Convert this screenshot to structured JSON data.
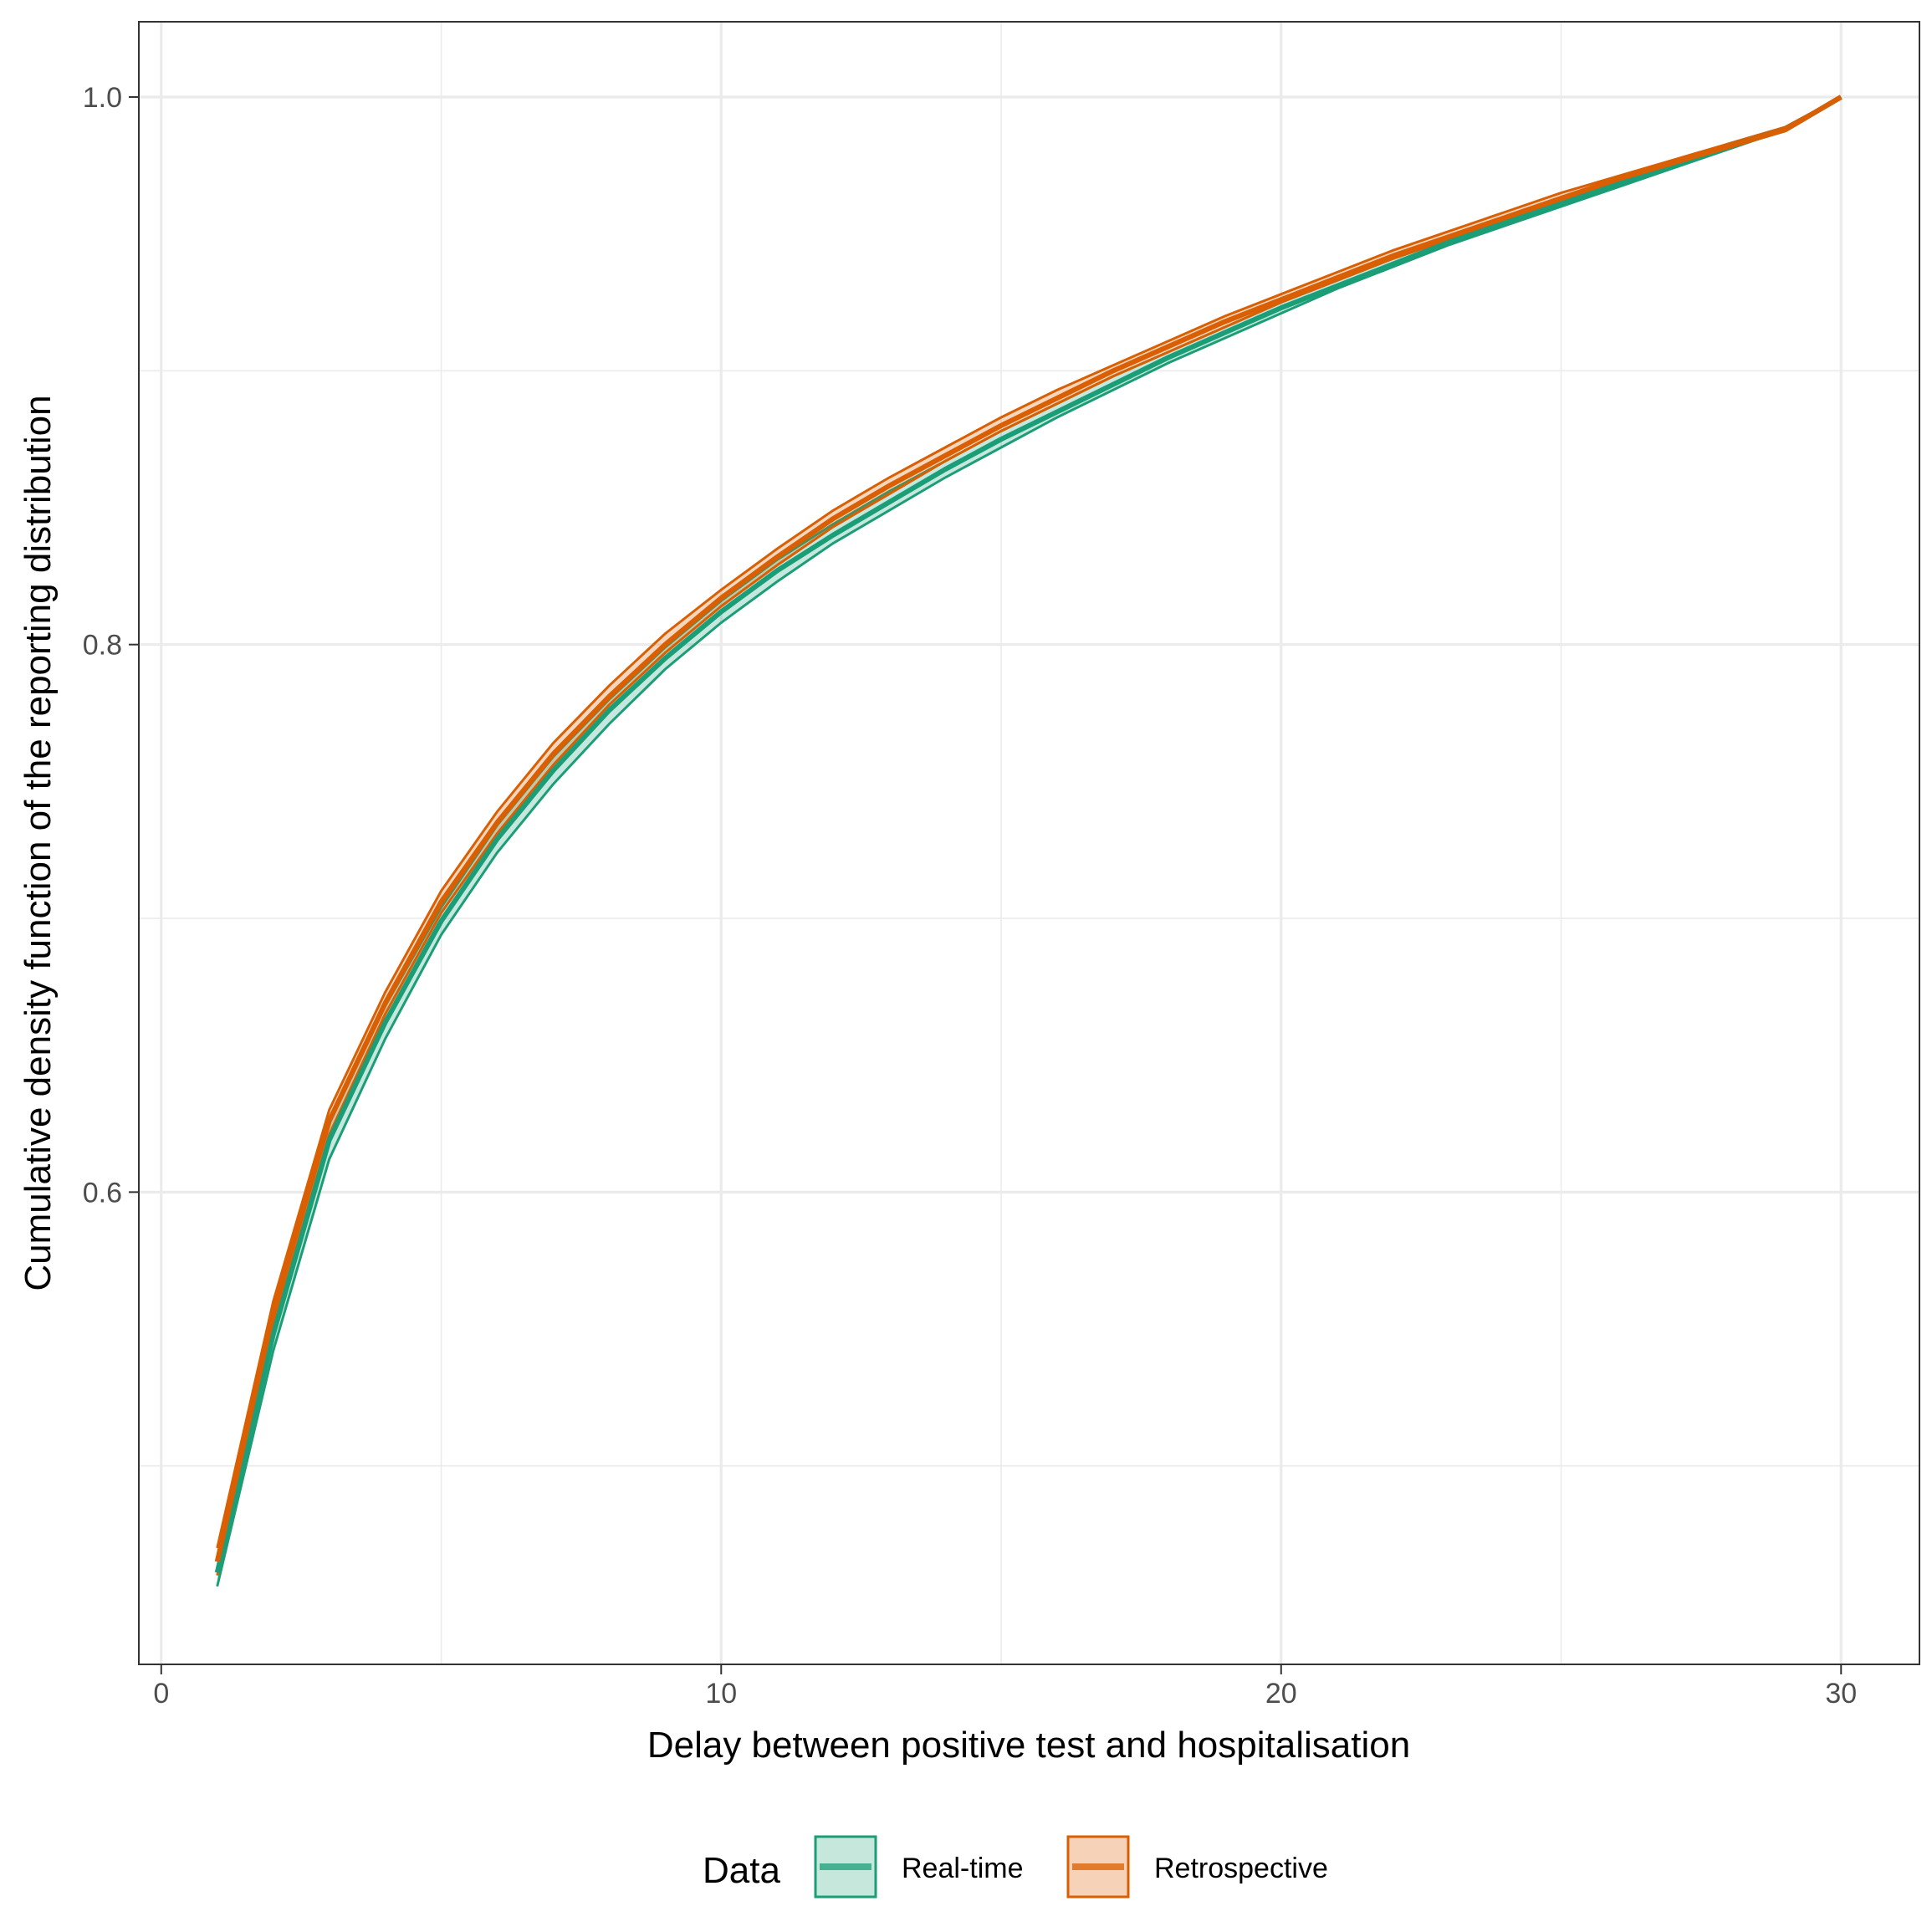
{
  "chart_data": {
    "type": "line",
    "xlabel": "Delay between positive test and hospitalisation",
    "ylabel": "Cumulative density function of the reporting distribution",
    "xlim": [
      -0.4,
      31.4
    ],
    "ylim": [
      0.4275,
      1.0275
    ],
    "x_ticks": [
      0,
      10,
      20,
      30
    ],
    "x_tick_labels": [
      "0",
      "10",
      "20",
      "30"
    ],
    "x_minor_ticks": [
      5,
      15,
      25
    ],
    "y_ticks": [
      0.6,
      0.8,
      1.0
    ],
    "y_tick_labels": [
      "0.6",
      "0.8",
      "1.0"
    ],
    "y_minor_ticks": [
      0.5,
      0.7,
      0.9
    ],
    "grid": true,
    "legend": {
      "title": "Data",
      "position": "bottom",
      "entries": [
        "Real-time",
        "Retrospective"
      ]
    },
    "x": [
      1,
      2,
      3,
      4,
      5,
      6,
      7,
      8,
      9,
      10,
      11,
      12,
      13,
      14,
      15,
      16,
      17,
      18,
      19,
      20,
      21,
      22,
      23,
      24,
      25,
      26,
      27,
      28,
      29,
      30
    ],
    "series": [
      {
        "name": "Real-time",
        "color": "#1B9E77",
        "fill": "#C5E7DC",
        "values": [
          0.461,
          0.548,
          0.619,
          0.662,
          0.699,
          0.729,
          0.754,
          0.776,
          0.795,
          0.812,
          0.827,
          0.84,
          0.852,
          0.864,
          0.875,
          0.885,
          0.895,
          0.905,
          0.914,
          0.923,
          0.931,
          0.939,
          0.947,
          0.954,
          0.961,
          0.968,
          0.975,
          0.982,
          0.988,
          1.0
        ],
        "lower": [
          0.456,
          0.542,
          0.612,
          0.656,
          0.694,
          0.724,
          0.749,
          0.771,
          0.791,
          0.808,
          0.823,
          0.837,
          0.849,
          0.861,
          0.872,
          0.883,
          0.893,
          0.903,
          0.912,
          0.921,
          0.93,
          0.938,
          0.946,
          0.953,
          0.96,
          0.967,
          0.974,
          0.981,
          0.988,
          1.0
        ],
        "upper": [
          0.466,
          0.554,
          0.625,
          0.668,
          0.704,
          0.734,
          0.759,
          0.78,
          0.799,
          0.816,
          0.831,
          0.844,
          0.856,
          0.867,
          0.878,
          0.888,
          0.898,
          0.907,
          0.916,
          0.925,
          0.933,
          0.941,
          0.948,
          0.955,
          0.962,
          0.969,
          0.976,
          0.983,
          0.989,
          1.0
        ]
      },
      {
        "name": "Retrospective",
        "color": "#D95F02",
        "fill": "#F6D2B8",
        "values": [
          0.465,
          0.556,
          0.626,
          0.669,
          0.706,
          0.735,
          0.76,
          0.781,
          0.8,
          0.817,
          0.832,
          0.846,
          0.858,
          0.869,
          0.88,
          0.89,
          0.9,
          0.909,
          0.918,
          0.926,
          0.934,
          0.942,
          0.949,
          0.956,
          0.963,
          0.97,
          0.976,
          0.982,
          0.988,
          1.0
        ],
        "lower": [
          0.46,
          0.551,
          0.621,
          0.665,
          0.702,
          0.731,
          0.756,
          0.778,
          0.797,
          0.814,
          0.829,
          0.843,
          0.855,
          0.867,
          0.878,
          0.888,
          0.898,
          0.907,
          0.916,
          0.925,
          0.933,
          0.941,
          0.948,
          0.955,
          0.962,
          0.969,
          0.975,
          0.982,
          0.988,
          1.0
        ],
        "upper": [
          0.47,
          0.56,
          0.63,
          0.673,
          0.71,
          0.739,
          0.764,
          0.785,
          0.804,
          0.82,
          0.835,
          0.849,
          0.861,
          0.872,
          0.883,
          0.893,
          0.902,
          0.911,
          0.92,
          0.928,
          0.936,
          0.944,
          0.951,
          0.958,
          0.965,
          0.971,
          0.977,
          0.983,
          0.989,
          1.0
        ]
      }
    ]
  }
}
